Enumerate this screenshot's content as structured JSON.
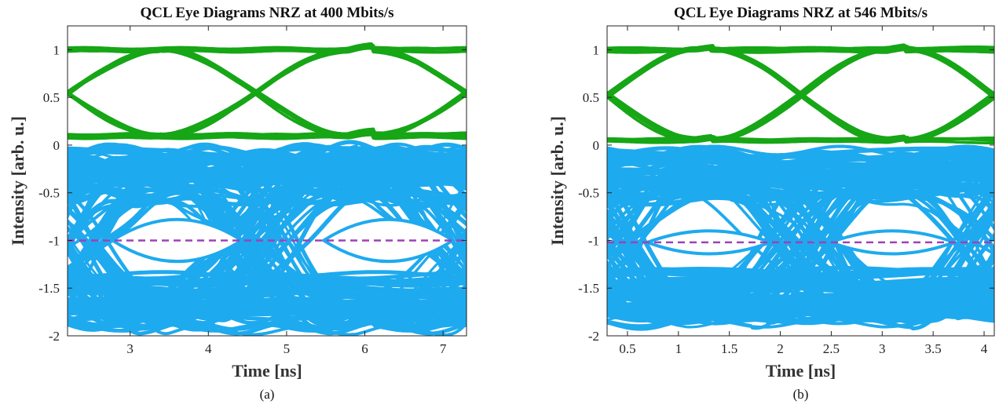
{
  "chart_data": [
    {
      "type": "line",
      "panel_label": "(a)",
      "title": "QCL Eye Diagrams NRZ at 400 Mbits/s",
      "xlabel": "Time [ns]",
      "ylabel": "Intensity [arb. u.]",
      "xlim": [
        2.2,
        7.3
      ],
      "ylim": [
        -2,
        1.25
      ],
      "xticks": [
        3,
        4,
        5,
        6,
        7
      ],
      "yticks": [
        1,
        0.5,
        0,
        -0.5,
        -1,
        -1.5,
        -2
      ],
      "bit_period_ns": 2.5,
      "crossings_ns": [
        2.2,
        4.6,
        7.3
      ],
      "grid": false,
      "series": [
        {
          "color": "#16a616",
          "role": "eye-upper",
          "levels": [
            0.1,
            1.0
          ],
          "crossing_level": 0.55
        },
        {
          "color": "#1eaaee",
          "role": "eye-lower",
          "levels": [
            -1.85,
            -0.05
          ],
          "crossing_level": -1.0,
          "eye_centers_ns": [
            3.6,
            6.3
          ],
          "eye_half_height": 0.22
        },
        {
          "color": "#a040b8",
          "role": "threshold",
          "style": "dashed",
          "y": -1.0
        }
      ]
    },
    {
      "type": "line",
      "panel_label": "(b)",
      "title": "QCL Eye Diagrams NRZ at 546 Mbits/s",
      "xlabel": "Time [ns]",
      "ylabel": "Intensity [arb. u.]",
      "xlim": [
        0.3,
        4.1
      ],
      "ylim": [
        -2,
        1.25
      ],
      "xticks": [
        0.5,
        1,
        1.5,
        2,
        2.5,
        3,
        3.5,
        4
      ],
      "yticks": [
        1,
        0.5,
        0,
        -0.5,
        -1,
        -1.5,
        -2
      ],
      "bit_period_ns": 1.83,
      "crossings_ns": [
        0.3,
        2.2,
        4.1
      ],
      "grid": false,
      "series": [
        {
          "color": "#16a616",
          "role": "eye-upper",
          "levels": [
            0.05,
            1.0
          ],
          "crossing_level": 0.55
        },
        {
          "color": "#1eaaee",
          "role": "eye-lower",
          "levels": [
            -1.8,
            -0.05
          ],
          "crossing_level": -1.02,
          "eye_centers_ns": [
            1.3,
            3.1
          ],
          "eye_half_height": 0.12
        },
        {
          "color": "#a040b8",
          "role": "threshold",
          "style": "dashed",
          "y": -1.02
        }
      ]
    }
  ]
}
